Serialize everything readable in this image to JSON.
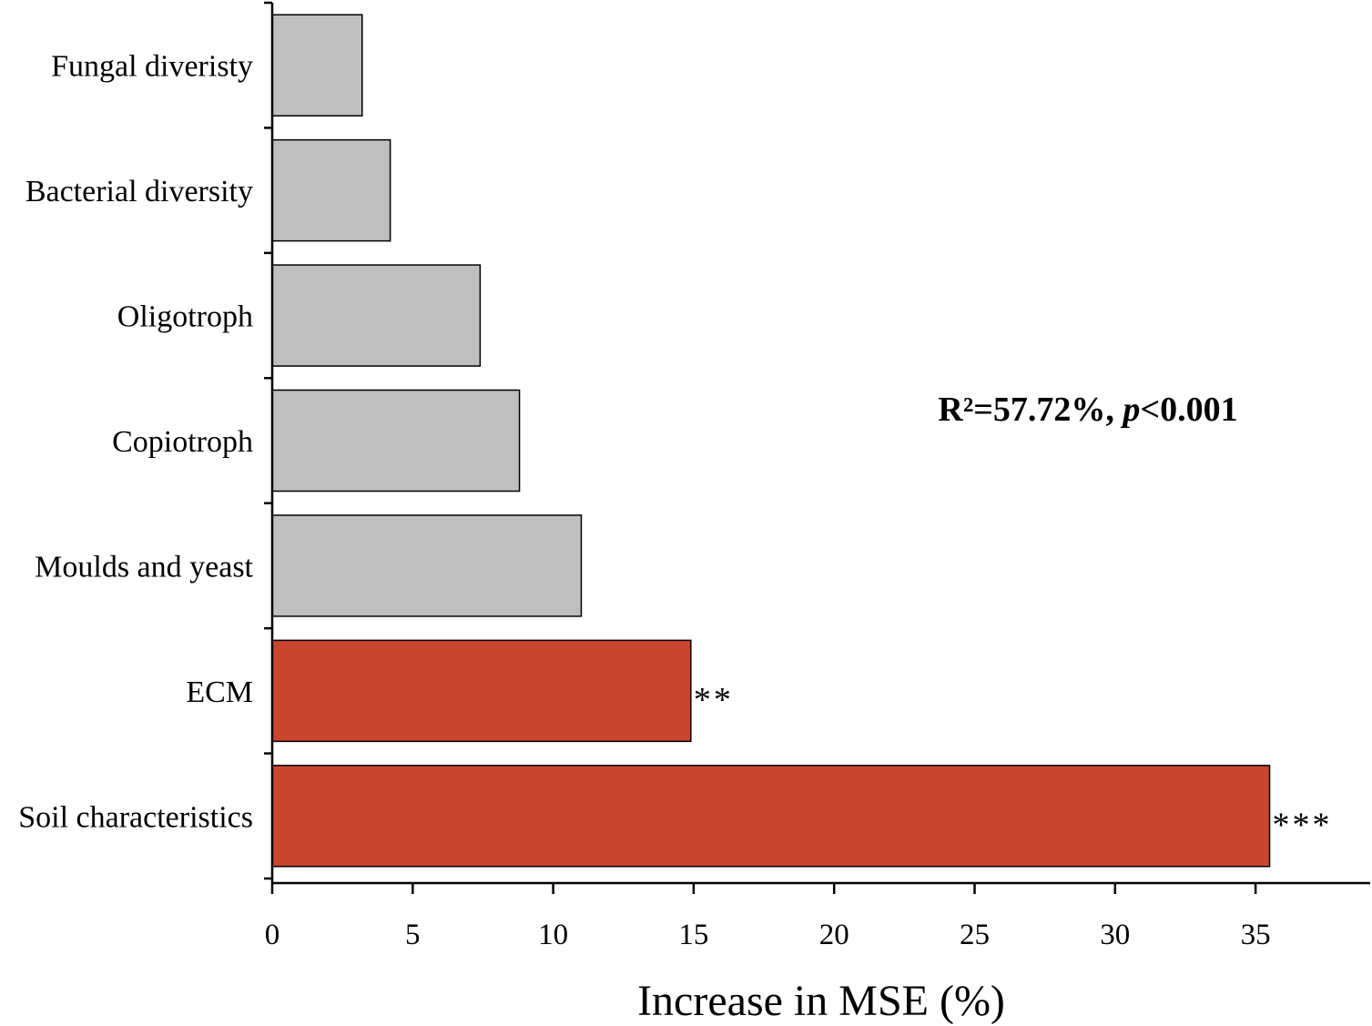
{
  "chart_data": {
    "type": "bar",
    "orientation": "horizontal",
    "title": "",
    "xlabel": "Increase in MSE (%)",
    "ylabel": "",
    "xlim": [
      0,
      38.5
    ],
    "xticks": [
      0,
      5,
      10,
      15,
      20,
      25,
      30,
      35
    ],
    "categories": [
      "Fungal diveristy",
      "Bacterial diversity",
      "Oligotroph",
      "Copiotroph",
      "Moulds and yeast",
      "ECM",
      "Soil characteristics"
    ],
    "values": [
      3.2,
      4.2,
      7.4,
      8.8,
      11.0,
      14.9,
      35.5
    ],
    "significance": [
      "",
      "",
      "",
      "",
      "",
      "**",
      "***"
    ],
    "bar_colors": [
      "#bfbfbf",
      "#bfbfbf",
      "#bfbfbf",
      "#bfbfbf",
      "#bfbfbf",
      "#c94530",
      "#c94530"
    ],
    "annotation": {
      "r2_text": "R²=57.72%, ",
      "p_label": "p",
      "p_text": "<0.001"
    },
    "grid": false
  }
}
